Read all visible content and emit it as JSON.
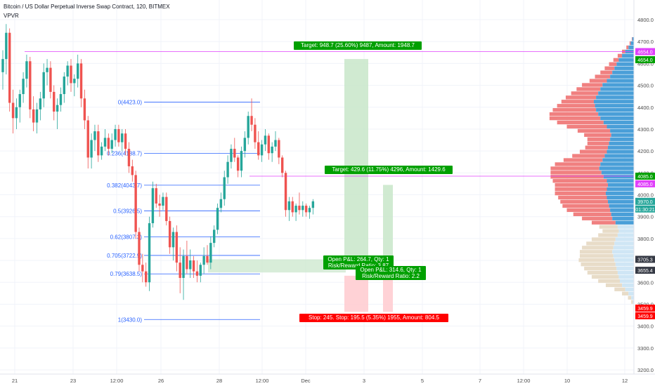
{
  "header": {
    "symbol_line": "Bitcoin / US Dollar Perpetual Inverse Swap Contract, 120, BITMEX",
    "indicator": "VPVR"
  },
  "colors": {
    "up": "#26a69a",
    "down": "#ef5350",
    "fib": "#2962ff",
    "target_bg": "#c8e6c9",
    "stop_bg": "#ffcdd2",
    "magenta": "#e040fb",
    "vp_up": "#4a9fd8",
    "vp_down": "#f08080",
    "vp_up_light": "#cfe6f5",
    "vp_down_light": "#e8dcc8"
  },
  "price_axis": {
    "ticks": [
      "4800.0",
      "4700.0",
      "4600.0",
      "4500.0",
      "4400.0",
      "4300.0",
      "4200.0",
      "4100.0",
      "4000.0",
      "3900.0",
      "3800.0",
      "3700.0",
      "3600.0",
      "3500.0",
      "3400.0",
      "3300.0",
      "3200.0"
    ],
    "badges": [
      {
        "label": "4654.0",
        "price": 4654,
        "bg": "#e040fb",
        "fg": "#ffffff"
      },
      {
        "label": "4654.0",
        "price": 4617,
        "bg": "#00a000",
        "fg": "#ffffff"
      },
      {
        "label": "4085.0",
        "price": 4085,
        "bg": "#00a000",
        "fg": "#ffffff"
      },
      {
        "label": "4085.0",
        "price": 4050,
        "bg": "#e040fb",
        "fg": "#ffffff"
      },
      {
        "label": "3970.0",
        "price": 3970,
        "bg": "#26a69a",
        "fg": "#ffffff"
      },
      {
        "label": "01:30:21",
        "price": 3935,
        "bg": "#26a69a",
        "fg": "#ffffff"
      },
      {
        "label": "3705.3",
        "price": 3705,
        "bg": "#363a45",
        "fg": "#ffffff"
      },
      {
        "label": "3655.4",
        "price": 3655,
        "bg": "#363a45",
        "fg": "#ffffff"
      },
      {
        "label": "3459.9",
        "price": 3482,
        "bg": "#ff0000",
        "fg": "#ffffff"
      },
      {
        "label": "3459.9",
        "price": 3447,
        "bg": "#ff0000",
        "fg": "#ffffff"
      }
    ]
  },
  "time_axis": {
    "labels": [
      {
        "t": "21",
        "x": 21
      },
      {
        "t": "23",
        "x": 104
      },
      {
        "t": "12:00",
        "x": 166
      },
      {
        "t": "26",
        "x": 229
      },
      {
        "t": "28",
        "x": 312
      },
      {
        "t": "12:00",
        "x": 373
      },
      {
        "t": "Dec",
        "x": 435
      },
      {
        "t": "3",
        "x": 518
      },
      {
        "t": "5",
        "x": 601
      },
      {
        "t": "7",
        "x": 683
      },
      {
        "t": "12:00",
        "x": 745
      },
      {
        "t": "10",
        "x": 807
      },
      {
        "t": "12",
        "x": 889
      }
    ]
  },
  "fib_levels": [
    {
      "label": "0(4423.0)",
      "price": 4423
    },
    {
      "label": "0.236(4188.7)",
      "price": 4188.7
    },
    {
      "label": "0.382(4043.7)",
      "price": 4043.7
    },
    {
      "label": "0.5(3926.5)",
      "price": 3926.5
    },
    {
      "label": "0.62(3807.3)",
      "price": 3807.3
    },
    {
      "label": "0.705(3722.9)",
      "price": 3722.9
    },
    {
      "label": "0.79(3638.5)",
      "price": 3638.5
    },
    {
      "label": "1(3430.0)",
      "price": 3430
    }
  ],
  "positions": {
    "target1": "Target: 948.7 (25.60%) 9487, Amount: 1948.7",
    "target2": "Target: 429.6 (11.75%) 4296, Amount: 1429.6",
    "open1_line1": "Open P&L: 264.7, Qty: 1",
    "open1_line2": "Risk/Reward Ratio: 3.87",
    "open2_line1": "Open P&L: 314.6, Qty: 1",
    "open2_line2": "Risk/Reward Ratio: 2.2",
    "stop": "Stop: 245.  Stop: 195.5 (5.35%) 1955, Amount: 804.5"
  },
  "chart_data": {
    "type": "candlestick",
    "title": "Bitcoin / US Dollar Perpetual Inverse Swap Contract, 120, BITMEX",
    "ylim": [
      3170,
      4840
    ],
    "candles": [
      [
        4560,
        4660,
        4480,
        4620
      ],
      [
        4620,
        4780,
        4550,
        4740
      ],
      [
        4740,
        4760,
        4380,
        4420
      ],
      [
        4420,
        4480,
        4280,
        4350
      ],
      [
        4350,
        4440,
        4300,
        4400
      ],
      [
        4400,
        4480,
        4330,
        4460
      ],
      [
        4460,
        4560,
        4420,
        4530
      ],
      [
        4530,
        4640,
        4490,
        4610
      ],
      [
        4610,
        4630,
        4350,
        4390
      ],
      [
        4390,
        4450,
        4290,
        4330
      ],
      [
        4330,
        4420,
        4280,
        4390
      ],
      [
        4390,
        4470,
        4340,
        4440
      ],
      [
        4440,
        4600,
        4400,
        4560
      ],
      [
        4560,
        4620,
        4500,
        4580
      ],
      [
        4580,
        4610,
        4440,
        4470
      ],
      [
        4470,
        4500,
        4340,
        4380
      ],
      [
        4380,
        4440,
        4300,
        4410
      ],
      [
        4410,
        4490,
        4380,
        4460
      ],
      [
        4460,
        4560,
        4420,
        4540
      ],
      [
        4540,
        4610,
        4500,
        4590
      ],
      [
        4590,
        4620,
        4470,
        4510
      ],
      [
        4510,
        4550,
        4450,
        4530
      ],
      [
        4530,
        4640,
        4490,
        4600
      ],
      [
        4600,
        4620,
        4400,
        4440
      ],
      [
        4440,
        4480,
        4300,
        4340
      ],
      [
        4340,
        4360,
        4120,
        4170
      ],
      [
        4170,
        4280,
        4120,
        4250
      ],
      [
        4250,
        4320,
        4200,
        4290
      ],
      [
        4290,
        4320,
        4150,
        4180
      ],
      [
        4180,
        4240,
        4160,
        4220
      ],
      [
        4220,
        4300,
        4200,
        4260
      ],
      [
        4260,
        4280,
        4180,
        4210
      ],
      [
        4210,
        4280,
        4190,
        4250
      ],
      [
        4250,
        4320,
        4220,
        4300
      ],
      [
        4300,
        4320,
        4220,
        4240
      ],
      [
        4240,
        4300,
        4200,
        4280
      ],
      [
        4280,
        4300,
        4180,
        4210
      ],
      [
        4210,
        4240,
        4100,
        4130
      ],
      [
        4130,
        4160,
        4060,
        4090
      ],
      [
        4090,
        4110,
        3800,
        3830
      ],
      [
        3830,
        3850,
        3650,
        3680
      ],
      [
        3680,
        3730,
        3600,
        3650
      ],
      [
        3650,
        3690,
        3580,
        3600
      ],
      [
        3600,
        3900,
        3560,
        3870
      ],
      [
        3870,
        4060,
        3850,
        4030
      ],
      [
        4030,
        4050,
        3940,
        3960
      ],
      [
        3960,
        4000,
        3900,
        3950
      ],
      [
        3950,
        4010,
        3930,
        3990
      ],
      [
        3990,
        4010,
        3860,
        3880
      ],
      [
        3880,
        3900,
        3730,
        3760
      ],
      [
        3760,
        3850,
        3700,
        3830
      ],
      [
        3830,
        3860,
        3650,
        3690
      ],
      [
        3690,
        3760,
        3550,
        3620
      ],
      [
        3620,
        3750,
        3520,
        3720
      ],
      [
        3720,
        3790,
        3640,
        3660
      ],
      [
        3660,
        3750,
        3620,
        3700
      ],
      [
        3700,
        3720,
        3620,
        3650
      ],
      [
        3650,
        3700,
        3600,
        3630
      ],
      [
        3630,
        3690,
        3600,
        3680
      ],
      [
        3680,
        3760,
        3640,
        3720
      ],
      [
        3720,
        3770,
        3680,
        3690
      ],
      [
        3690,
        3810,
        3660,
        3780
      ],
      [
        3780,
        3860,
        3760,
        3840
      ],
      [
        3840,
        3960,
        3820,
        3940
      ],
      [
        3940,
        4010,
        3920,
        3980
      ],
      [
        3980,
        4110,
        3950,
        4080
      ],
      [
        4080,
        4180,
        4050,
        4150
      ],
      [
        4150,
        4230,
        4120,
        4210
      ],
      [
        4210,
        4260,
        4150,
        4170
      ],
      [
        4170,
        4180,
        4080,
        4110
      ],
      [
        4110,
        4220,
        4080,
        4200
      ],
      [
        4200,
        4290,
        4170,
        4260
      ],
      [
        4260,
        4380,
        4230,
        4360
      ],
      [
        4360,
        4440,
        4290,
        4320
      ],
      [
        4320,
        4350,
        4210,
        4240
      ],
      [
        4240,
        4290,
        4160,
        4180
      ],
      [
        4180,
        4250,
        4150,
        4230
      ],
      [
        4230,
        4300,
        4200,
        4270
      ],
      [
        4270,
        4280,
        4160,
        4190
      ],
      [
        4190,
        4240,
        4150,
        4220
      ],
      [
        4220,
        4290,
        4200,
        4250
      ],
      [
        4250,
        4260,
        4140,
        4170
      ],
      [
        4170,
        4180,
        4080,
        4100
      ],
      [
        4100,
        4110,
        3900,
        3930
      ],
      [
        3930,
        3990,
        3880,
        3970
      ],
      [
        3970,
        3990,
        3900,
        3920
      ],
      [
        3920,
        3960,
        3880,
        3950
      ],
      [
        3950,
        4010,
        3910,
        3930
      ],
      [
        3930,
        3970,
        3900,
        3950
      ],
      [
        3950,
        3960,
        3900,
        3920
      ],
      [
        3920,
        3950,
        3890,
        3940
      ],
      [
        3940,
        3980,
        3910,
        3970
      ]
    ],
    "volume_profile_range": [
      3500,
      4720
    ],
    "volume_profile_up": [
      0.02,
      0.05,
      0.1,
      0.16,
      0.22,
      0.26,
      0.28,
      0.3,
      0.32,
      0.34,
      0.36,
      0.38,
      0.4,
      0.38,
      0.36,
      0.34,
      0.3,
      0.28,
      0.3,
      0.34,
      0.4,
      0.42,
      0.44,
      0.46,
      0.48,
      0.5,
      0.52,
      0.5,
      0.48,
      0.5,
      0.56,
      0.6,
      0.64,
      0.62,
      0.58,
      0.54,
      0.5,
      0.48,
      0.46,
      0.44,
      0.42,
      0.44,
      0.5,
      0.56,
      0.62,
      0.66,
      0.7,
      0.72,
      0.74,
      0.7,
      0.66,
      0.62,
      0.58,
      0.5,
      0.44,
      0.4,
      0.36,
      0.32,
      0.28,
      0.22,
      0.16,
      0.1,
      0.06,
      0.03
    ],
    "volume_profile_down": [
      0.03,
      0.06,
      0.12,
      0.2,
      0.3,
      0.4,
      0.5,
      0.56,
      0.6,
      0.64,
      0.66,
      0.62,
      0.6,
      0.58,
      0.52,
      0.44,
      0.36,
      0.3,
      0.34,
      0.44,
      0.56,
      0.7,
      0.8,
      0.86,
      0.88,
      0.9,
      0.94,
      0.96,
      0.98,
      1.0,
      0.98,
      0.94,
      0.9,
      0.84,
      0.72,
      0.6,
      0.5,
      0.42,
      0.4,
      0.42,
      0.5,
      0.6,
      0.74,
      0.86,
      0.94,
      0.9,
      0.8,
      0.7,
      0.6,
      0.56,
      0.5,
      0.44,
      0.38,
      0.32,
      0.28,
      0.22,
      0.18,
      0.14,
      0.1,
      0.08,
      0.06,
      0.04,
      0.02,
      0.01
    ]
  }
}
